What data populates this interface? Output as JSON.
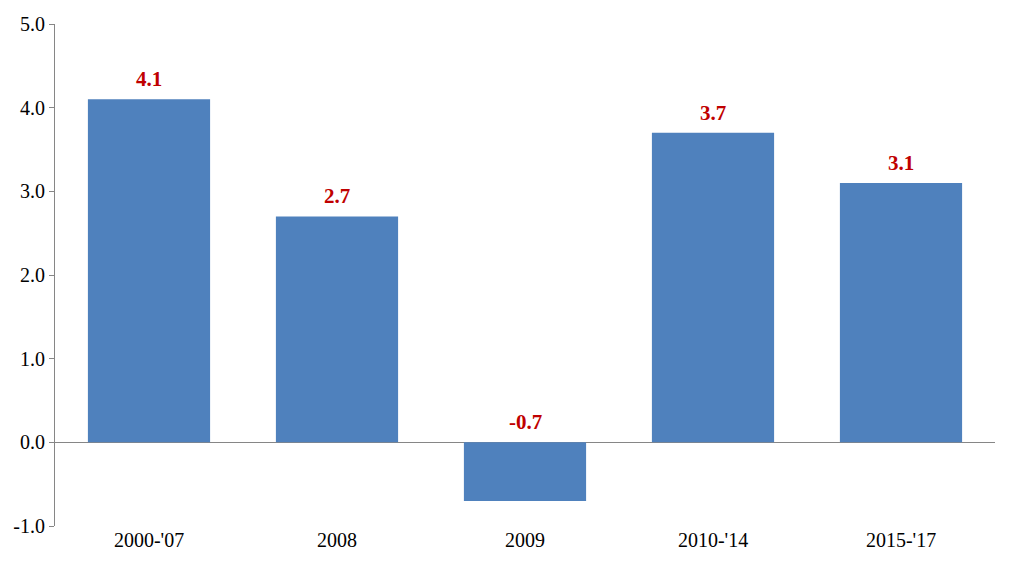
{
  "chart_data": {
    "type": "bar",
    "categories": [
      "2000-'07",
      "2008",
      "2009",
      "2010-'14",
      "2015-'17"
    ],
    "values": [
      4.1,
      2.7,
      -0.7,
      3.7,
      3.1
    ],
    "color": "#4f81bd",
    "ylim": [
      -1,
      5
    ],
    "yticks": [
      {
        "value": -1,
        "label": "-1.0"
      },
      {
        "value": 0,
        "label": "0.0"
      },
      {
        "value": 1,
        "label": "1.0"
      },
      {
        "value": 2,
        "label": "2.0"
      },
      {
        "value": 3,
        "label": "3.0"
      },
      {
        "value": 4,
        "label": "4.0"
      },
      {
        "value": 5,
        "label": "5.0"
      }
    ],
    "grid": false,
    "data_labels": true
  }
}
